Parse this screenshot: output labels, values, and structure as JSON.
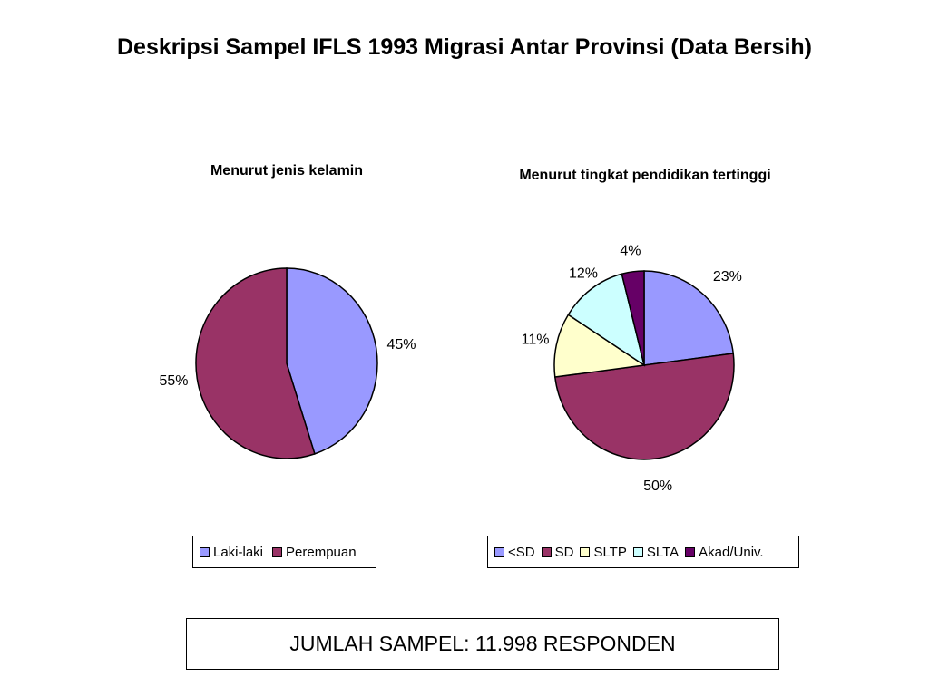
{
  "title": "Deskripsi Sampel IFLS 1993 Migrasi Antar Provinsi (Data Bersih)",
  "sample_note": "JUMLAH SAMPEL: 11.998 RESPONDEN",
  "chart_data": [
    {
      "type": "pie",
      "title": "Menurut jenis kelamin",
      "start": "12 o'clock, clockwise",
      "slices": [
        {
          "label": "Laki-laki",
          "value": 45,
          "display": "45%",
          "color": "#9999ff"
        },
        {
          "label": "Perempuan",
          "value": 55,
          "display": "55%",
          "color": "#993366"
        }
      ]
    },
    {
      "type": "pie",
      "title": "Menurut tingkat pendidikan tertinggi",
      "start": "12 o'clock, clockwise",
      "slices": [
        {
          "label": "<SD",
          "value": 23,
          "display": "23%",
          "color": "#9999ff"
        },
        {
          "label": "SD",
          "value": 50,
          "display": "50%",
          "color": "#993366"
        },
        {
          "label": "SLTP",
          "value": 11,
          "display": "11%",
          "color": "#ffffcc"
        },
        {
          "label": "SLTA",
          "value": 12,
          "display": "12%",
          "color": "#ccffff"
        },
        {
          "label": "Akad/Univ.",
          "value": 4,
          "display": "4%",
          "color": "#660066"
        }
      ]
    }
  ]
}
